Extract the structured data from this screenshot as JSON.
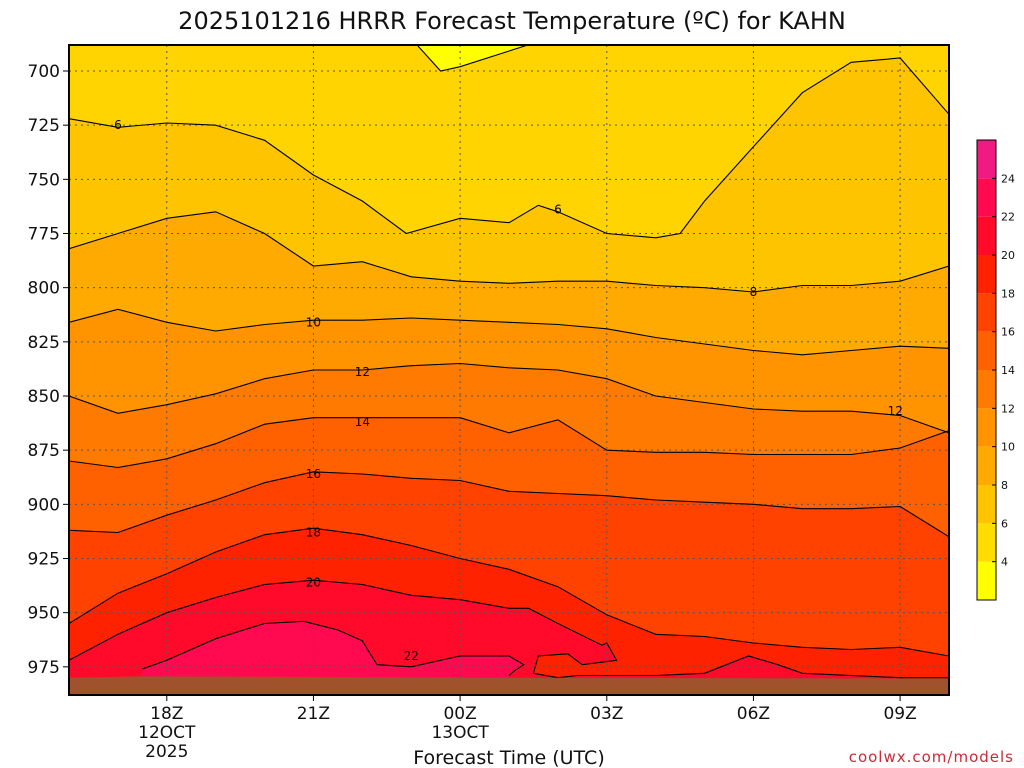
{
  "chart_data": {
    "type": "contour",
    "title": "2025101216 HRRR Forecast Temperature (ºC) for KAHN",
    "xlabel": "Forecast Time (UTC)",
    "ylabel": "",
    "credit": "coolwx.com/models",
    "x_ticks": [
      {
        "hour": 18,
        "label": "18Z",
        "sub1": "12OCT",
        "sub2": "2025"
      },
      {
        "hour": 21,
        "label": "21Z",
        "sub1": "",
        "sub2": ""
      },
      {
        "hour": 24,
        "label": "00Z",
        "sub1": "13OCT",
        "sub2": ""
      },
      {
        "hour": 27,
        "label": "03Z",
        "sub1": "",
        "sub2": ""
      },
      {
        "hour": 30,
        "label": "06Z",
        "sub1": "",
        "sub2": ""
      },
      {
        "hour": 33,
        "label": "09Z",
        "sub1": "",
        "sub2": ""
      }
    ],
    "xlim": [
      16,
      34
    ],
    "y_ticks": [
      700,
      725,
      750,
      775,
      800,
      825,
      850,
      875,
      900,
      925,
      950,
      975
    ],
    "ylim": [
      688,
      988
    ],
    "surface_pressure_hpa": 980,
    "colorbar": {
      "ticks": [
        4,
        6,
        8,
        10,
        12,
        14,
        16,
        18,
        20,
        22,
        24
      ],
      "range": [
        2,
        26
      ],
      "colors": [
        "#ffff00",
        "#ffdd00",
        "#ffc400",
        "#ffaa00",
        "#ff9400",
        "#ff7a00",
        "#ff6000",
        "#ff4200",
        "#ff2200",
        "#ff0a2a",
        "#ff0a50",
        "#f01a80"
      ]
    },
    "contour_levels": [
      {
        "level": 6,
        "points": [
          [
            16,
            722
          ],
          [
            17,
            726
          ],
          [
            18,
            724
          ],
          [
            19,
            725
          ],
          [
            20,
            732
          ],
          [
            21,
            748
          ],
          [
            22,
            760
          ],
          [
            22.9,
            775
          ],
          [
            24,
            768
          ],
          [
            25,
            770
          ],
          [
            25.6,
            762
          ],
          [
            26,
            765
          ],
          [
            27,
            775
          ],
          [
            28,
            777
          ],
          [
            28.5,
            775
          ],
          [
            29,
            760
          ],
          [
            30,
            735
          ],
          [
            31,
            710
          ],
          [
            32,
            696
          ],
          [
            33,
            694
          ],
          [
            34,
            720
          ]
        ]
      },
      {
        "level": 4,
        "points": [
          [
            23,
            685
          ],
          [
            23.6,
            700
          ],
          [
            24,
            698
          ],
          [
            25.8,
            685
          ]
        ]
      },
      {
        "level": 8,
        "points": [
          [
            16,
            782
          ],
          [
            17,
            775
          ],
          [
            18,
            768
          ],
          [
            19,
            765
          ],
          [
            20,
            775
          ],
          [
            21,
            790
          ],
          [
            22,
            788
          ],
          [
            23,
            795
          ],
          [
            24,
            797
          ],
          [
            25,
            798
          ],
          [
            26,
            797
          ],
          [
            27,
            797
          ],
          [
            28,
            799
          ],
          [
            29,
            800
          ],
          [
            30,
            802
          ],
          [
            31,
            799
          ],
          [
            32,
            799
          ],
          [
            33,
            797
          ],
          [
            34,
            790
          ]
        ]
      },
      {
        "level": 10,
        "points": [
          [
            16,
            816
          ],
          [
            17,
            810
          ],
          [
            18,
            816
          ],
          [
            19,
            820
          ],
          [
            20,
            817
          ],
          [
            21,
            815
          ],
          [
            22,
            815
          ],
          [
            23,
            814
          ],
          [
            24,
            815
          ],
          [
            25,
            816
          ],
          [
            26,
            817
          ],
          [
            27,
            819
          ],
          [
            28,
            823
          ],
          [
            29,
            826
          ],
          [
            30,
            829
          ],
          [
            31,
            831
          ],
          [
            32,
            829
          ],
          [
            33,
            827
          ],
          [
            34,
            828
          ]
        ]
      },
      {
        "level": 12,
        "points": [
          [
            16,
            850
          ],
          [
            17,
            858
          ],
          [
            18,
            854
          ],
          [
            19,
            849
          ],
          [
            20,
            842
          ],
          [
            21,
            838
          ],
          [
            22,
            838
          ],
          [
            23,
            836
          ],
          [
            24,
            835
          ],
          [
            25,
            837
          ],
          [
            26,
            838
          ],
          [
            27,
            842
          ],
          [
            28,
            850
          ],
          [
            29,
            853
          ],
          [
            30,
            856
          ],
          [
            31,
            857
          ],
          [
            32,
            857
          ],
          [
            33,
            859
          ],
          [
            34,
            867
          ]
        ]
      },
      {
        "level": 14,
        "points": [
          [
            16,
            880
          ],
          [
            17,
            883
          ],
          [
            18,
            879
          ],
          [
            19,
            872
          ],
          [
            20,
            863
          ],
          [
            21,
            860
          ],
          [
            22,
            860
          ],
          [
            23,
            860
          ],
          [
            24,
            860
          ],
          [
            25,
            867
          ],
          [
            26,
            861
          ],
          [
            27,
            875
          ],
          [
            28,
            876
          ],
          [
            29,
            876
          ],
          [
            30,
            877
          ],
          [
            31,
            877
          ],
          [
            32,
            877
          ],
          [
            33,
            874
          ],
          [
            34,
            866
          ]
        ]
      },
      {
        "level": 16,
        "points": [
          [
            16,
            912
          ],
          [
            17,
            913
          ],
          [
            18,
            905
          ],
          [
            19,
            898
          ],
          [
            20,
            890
          ],
          [
            21,
            885
          ],
          [
            22,
            886
          ],
          [
            23,
            888
          ],
          [
            24,
            889
          ],
          [
            25,
            894
          ],
          [
            26,
            895
          ],
          [
            27,
            896
          ],
          [
            28,
            898
          ],
          [
            29,
            899
          ],
          [
            30,
            900
          ],
          [
            31,
            902
          ],
          [
            32,
            902
          ],
          [
            33,
            901
          ],
          [
            34,
            915
          ]
        ]
      },
      {
        "level": 18,
        "points": [
          [
            16,
            955
          ],
          [
            17,
            941
          ],
          [
            18,
            932
          ],
          [
            19,
            922
          ],
          [
            20,
            914
          ],
          [
            21,
            911
          ],
          [
            22,
            914
          ],
          [
            23,
            919
          ],
          [
            24,
            925
          ],
          [
            25,
            930
          ],
          [
            26,
            938
          ],
          [
            27,
            951
          ],
          [
            28,
            960
          ],
          [
            29,
            961
          ],
          [
            30,
            964
          ],
          [
            31,
            966
          ],
          [
            32,
            967
          ],
          [
            33,
            966
          ],
          [
            34,
            970
          ]
        ]
      },
      {
        "level": 20,
        "points": [
          [
            16,
            972
          ],
          [
            17,
            960
          ],
          [
            18,
            950
          ],
          [
            19,
            943
          ],
          [
            20,
            937
          ],
          [
            21,
            935
          ],
          [
            22,
            937
          ],
          [
            23,
            942
          ],
          [
            24,
            944
          ],
          [
            25,
            948
          ],
          [
            25.4,
            948
          ],
          [
            26,
            955
          ],
          [
            26.9,
            965
          ],
          [
            27,
            964
          ],
          [
            27.2,
            972
          ],
          [
            26.5,
            974
          ],
          [
            26.2,
            969
          ],
          [
            25.6,
            970
          ],
          [
            25.5,
            978
          ],
          [
            26,
            980
          ],
          [
            26.4,
            979
          ],
          [
            28,
            979
          ],
          [
            29,
            978
          ],
          [
            29.9,
            970
          ],
          [
            30.5,
            974
          ],
          [
            31,
            978
          ],
          [
            33,
            980
          ],
          [
            34,
            980
          ]
        ]
      },
      {
        "level": 22,
        "points": [
          [
            17.5,
            976
          ],
          [
            18,
            972
          ],
          [
            19,
            962
          ],
          [
            20,
            955
          ],
          [
            20.8,
            954
          ],
          [
            21.5,
            958
          ],
          [
            22,
            963
          ],
          [
            22.3,
            974
          ],
          [
            23,
            975
          ],
          [
            24,
            970
          ],
          [
            25,
            970
          ],
          [
            25.3,
            974
          ],
          [
            25.1,
            977
          ],
          [
            25,
            979
          ]
        ]
      }
    ],
    "contour_labels": [
      {
        "text": "6",
        "hour": 17,
        "p": 725
      },
      {
        "text": "6",
        "hour": 26,
        "p": 764
      },
      {
        "text": "8",
        "hour": 30,
        "p": 802
      },
      {
        "text": "10",
        "hour": 21,
        "p": 816
      },
      {
        "text": "12",
        "hour": 22,
        "p": 839
      },
      {
        "text": "12",
        "hour": 32.9,
        "p": 857
      },
      {
        "text": "14",
        "hour": 22,
        "p": 862
      },
      {
        "text": "16",
        "hour": 21,
        "p": 886
      },
      {
        "text": "18",
        "hour": 21,
        "p": 913
      },
      {
        "text": "20",
        "hour": 21,
        "p": 936
      },
      {
        "text": "22",
        "hour": 23,
        "p": 970
      }
    ]
  }
}
